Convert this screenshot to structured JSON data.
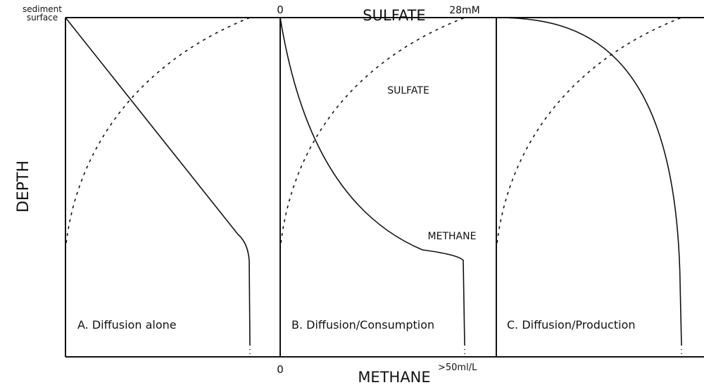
{
  "axes": {
    "surface_label": [
      "sediment",
      "surface"
    ],
    "top_title": "SULFATE",
    "top_min": "0",
    "top_max": "28mM",
    "y_title": "DEPTH",
    "bottom_title": "METHANE",
    "bottom_min": "0",
    "bottom_max": ">50ml/L"
  },
  "panels": [
    {
      "label": "A. Diffusion alone"
    },
    {
      "label": "B. Diffusion/Consumption",
      "curve_labels": [
        "SULFATE",
        "METHANE"
      ]
    },
    {
      "label": "C. Diffusion/Production"
    }
  ]
}
